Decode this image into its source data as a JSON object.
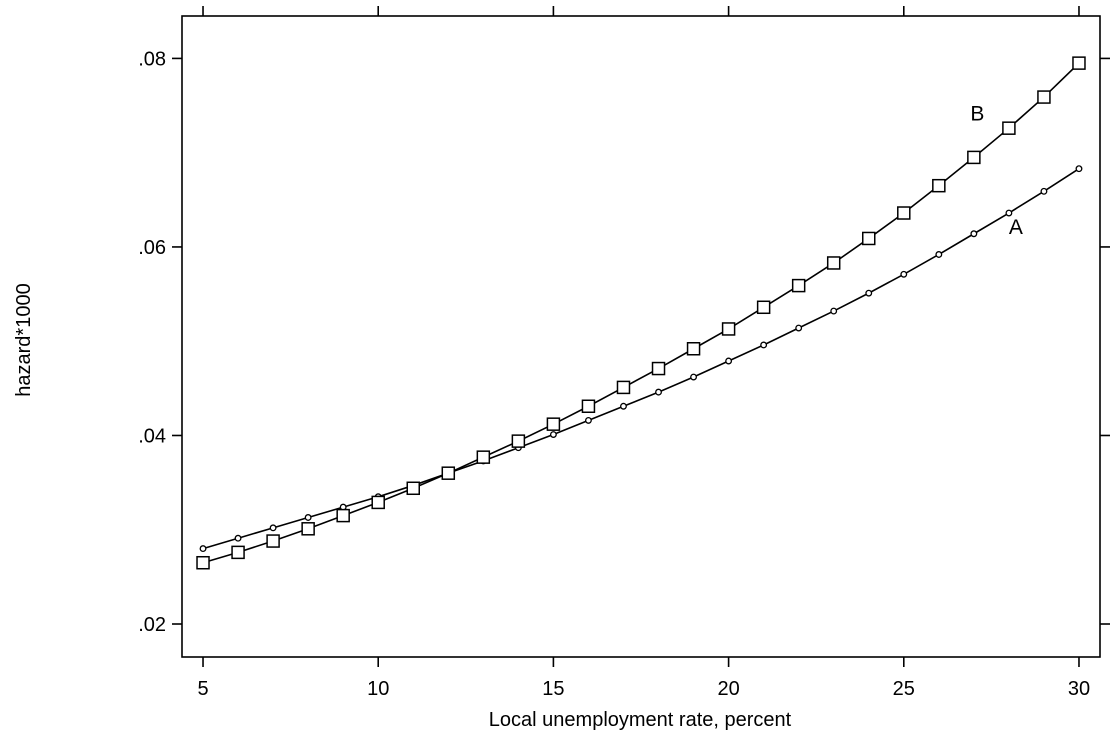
{
  "chart_data": {
    "type": "line",
    "title": "",
    "xlabel": "Local unemployment rate, percent",
    "ylabel": "hazard*1000",
    "xlim": [
      4.4,
      30.6
    ],
    "ylim": [
      0.0165,
      0.0845
    ],
    "xticks": [
      5,
      10,
      15,
      20,
      25,
      30
    ],
    "xtick_labels": [
      "5",
      "10",
      "15",
      "20",
      "25",
      "30"
    ],
    "yticks": [
      0.02,
      0.04,
      0.06,
      0.08
    ],
    "ytick_labels": [
      ".02",
      ".04",
      ".06",
      ".08"
    ],
    "grid": false,
    "x": [
      5,
      6,
      7,
      8,
      9,
      10,
      11,
      12,
      13,
      14,
      15,
      16,
      17,
      18,
      19,
      20,
      21,
      22,
      23,
      24,
      25,
      26,
      27,
      28,
      29,
      30
    ],
    "series": [
      {
        "name": "A",
        "marker": "circle",
        "values": [
          0.028,
          0.0291,
          0.0302,
          0.0313,
          0.0324,
          0.0335,
          0.0347,
          0.036,
          0.0373,
          0.0387,
          0.0401,
          0.0416,
          0.0431,
          0.0446,
          0.0462,
          0.0479,
          0.0496,
          0.0514,
          0.0532,
          0.0551,
          0.0571,
          0.0592,
          0.0614,
          0.0636,
          0.0659,
          0.0683
        ]
      },
      {
        "name": "B",
        "marker": "square",
        "values": [
          0.0265,
          0.0276,
          0.0288,
          0.0301,
          0.0315,
          0.0329,
          0.0344,
          0.036,
          0.0377,
          0.0394,
          0.0412,
          0.0431,
          0.0451,
          0.0471,
          0.0492,
          0.0513,
          0.0536,
          0.0559,
          0.0583,
          0.0609,
          0.0636,
          0.0665,
          0.0695,
          0.0726,
          0.0759,
          0.0795
        ]
      }
    ],
    "series_labels": [
      {
        "text": "A",
        "x": 28.2,
        "y": 0.0614
      },
      {
        "text": "B",
        "x": 27.1,
        "y": 0.0734
      }
    ]
  }
}
